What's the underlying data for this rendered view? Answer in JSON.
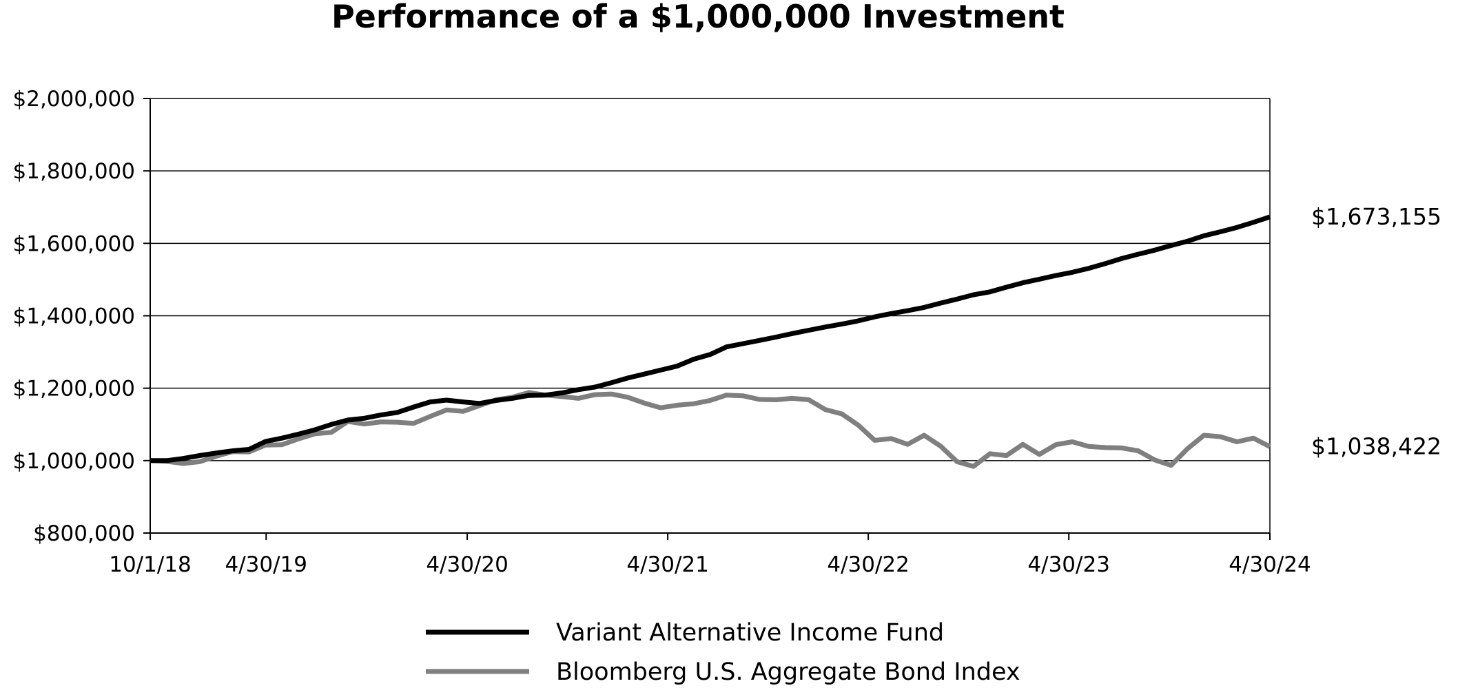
{
  "chart_data": {
    "type": "line",
    "title": "Performance of a $1,000,000 Investment",
    "xlabel": "",
    "ylabel": "",
    "x_tick_labels": [
      "10/1/18",
      "4/30/19",
      "4/30/20",
      "4/30/21",
      "4/30/22",
      "4/30/23",
      "4/30/24"
    ],
    "y_tick_labels": [
      "$800,000",
      "$1,000,000",
      "$1,200,000",
      "$1,400,000",
      "$1,600,000",
      "$1,800,000",
      "$2,000,000"
    ],
    "ylim": [
      800000,
      2000000
    ],
    "grid": true,
    "legend_position": "bottom",
    "series": [
      {
        "name": "Variant Alternative Income Fund",
        "color": "#000000",
        "end_label": "$1,673,155",
        "values": [
          1000000,
          1000000,
          1006000,
          1014000,
          1021000,
          1027000,
          1031000,
          1053000,
          1062000,
          1073000,
          1085000,
          1100000,
          1112000,
          1117000,
          1126000,
          1133000,
          1148000,
          1162000,
          1167000,
          1162000,
          1158000,
          1166000,
          1172000,
          1180000,
          1181000,
          1187000,
          1196000,
          1203000,
          1215000,
          1228000,
          1239000,
          1250000,
          1261000,
          1280000,
          1293000,
          1314000,
          1323000,
          1332000,
          1341000,
          1351000,
          1360000,
          1369000,
          1377000,
          1386000,
          1397000,
          1406000,
          1414000,
          1423000,
          1435000,
          1446000,
          1458000,
          1466000,
          1479000,
          1491000,
          1501000,
          1511000,
          1520000,
          1531000,
          1544000,
          1558000,
          1570000,
          1581000,
          1594000,
          1606000,
          1621000,
          1632000,
          1644000,
          1658000,
          1673155
        ]
      },
      {
        "name": "Bloomberg U.S. Aggregate Bond Index",
        "color": "#7f7f7f",
        "end_label": "$1,038,422",
        "values": [
          1000000,
          998000,
          992000,
          997000,
          1012000,
          1025000,
          1024000,
          1043000,
          1044000,
          1060000,
          1074000,
          1078000,
          1108000,
          1101000,
          1107000,
          1106000,
          1103000,
          1122000,
          1140000,
          1136000,
          1152000,
          1168000,
          1175000,
          1188000,
          1181000,
          1177000,
          1172000,
          1182000,
          1184000,
          1175000,
          1159000,
          1146000,
          1153000,
          1157000,
          1166000,
          1181000,
          1179000,
          1169000,
          1168000,
          1172000,
          1168000,
          1141000,
          1129000,
          1098000,
          1056000,
          1061000,
          1045000,
          1070000,
          1040000,
          997000,
          984000,
          1019000,
          1014000,
          1045000,
          1017000,
          1044000,
          1052000,
          1039000,
          1036000,
          1035000,
          1027000,
          1002000,
          987000,
          1033000,
          1070000,
          1066000,
          1052000,
          1062000,
          1038422
        ]
      }
    ]
  }
}
